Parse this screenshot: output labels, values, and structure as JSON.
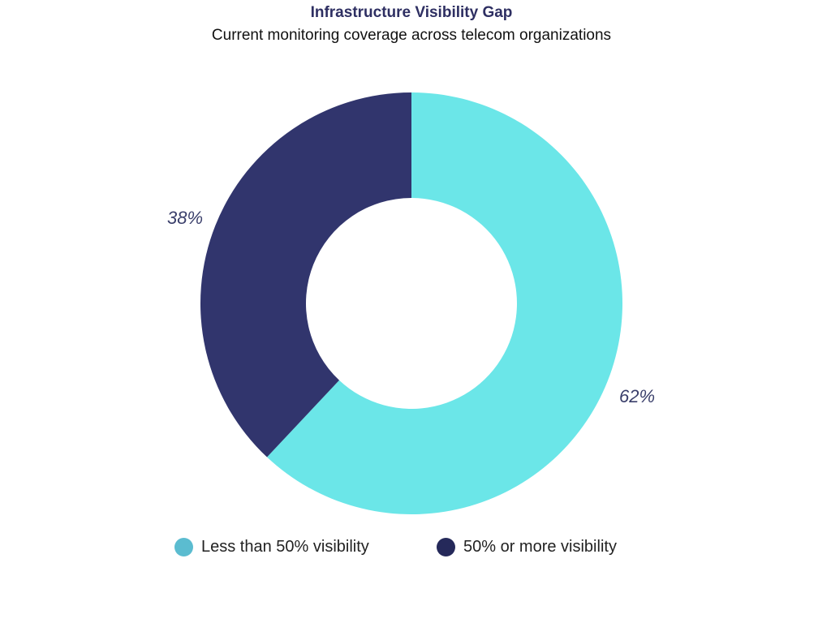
{
  "chart_data": {
    "type": "pie",
    "title": "Infrastructure Visibility Gap",
    "subtitle": "Current monitoring coverage across telecom organizations",
    "donut": true,
    "series": [
      {
        "name": "Less than 50% visibility",
        "value": 62,
        "label": "62%",
        "color": "#6be6e8",
        "legend_color": "#5bbcd0"
      },
      {
        "name": "50% or more visibility",
        "value": 38,
        "label": "38%",
        "color": "#31356d",
        "legend_color": "#25295a"
      }
    ],
    "legend": {
      "placement": "bottom"
    }
  }
}
